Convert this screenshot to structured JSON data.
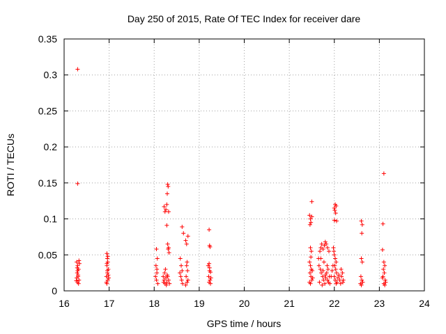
{
  "chart_data": {
    "type": "scatter",
    "title": "Day 250 of 2015, Rate Of TEC Index for receiver dare",
    "xlabel": "GPS time / hours",
    "ylabel": "ROTI / TECUs",
    "xlim": [
      16,
      24
    ],
    "ylim": [
      0,
      0.35
    ],
    "xticks": [
      16,
      17,
      18,
      19,
      20,
      21,
      22,
      23,
      24
    ],
    "yticks": [
      0,
      0.05,
      0.1,
      0.15,
      0.2,
      0.25,
      0.3,
      0.35
    ],
    "ytick_labels": [
      "0",
      "0.05",
      "0.1",
      "0.15",
      "0.2",
      "0.25",
      "0.3",
      "0.35"
    ],
    "grid": true,
    "marker": "+",
    "color": "#ff0000",
    "series": [
      {
        "name": "ROTI",
        "points": [
          [
            16.3,
            0.308
          ],
          [
            16.3,
            0.149
          ],
          [
            16.28,
            0.04
          ],
          [
            16.3,
            0.035
          ],
          [
            16.32,
            0.03
          ],
          [
            16.29,
            0.025
          ],
          [
            16.31,
            0.02
          ],
          [
            16.33,
            0.015
          ],
          [
            16.3,
            0.012
          ],
          [
            16.28,
            0.018
          ],
          [
            16.32,
            0.01
          ],
          [
            16.3,
            0.028
          ],
          [
            16.34,
            0.038
          ],
          [
            16.29,
            0.032
          ],
          [
            16.31,
            0.022
          ],
          [
            16.27,
            0.014
          ],
          [
            16.33,
            0.042
          ],
          [
            16.95,
            0.052
          ],
          [
            16.96,
            0.045
          ],
          [
            16.97,
            0.04
          ],
          [
            16.95,
            0.035
          ],
          [
            16.98,
            0.03
          ],
          [
            16.96,
            0.025
          ],
          [
            16.94,
            0.02
          ],
          [
            16.97,
            0.015
          ],
          [
            16.95,
            0.01
          ],
          [
            16.99,
            0.018
          ],
          [
            16.96,
            0.028
          ],
          [
            16.98,
            0.022
          ],
          [
            16.94,
            0.012
          ],
          [
            16.97,
            0.048
          ],
          [
            16.95,
            0.038
          ],
          [
            18.05,
            0.058
          ],
          [
            18.07,
            0.045
          ],
          [
            18.04,
            0.035
          ],
          [
            18.06,
            0.025
          ],
          [
            18.05,
            0.015
          ],
          [
            18.08,
            0.01
          ],
          [
            18.03,
            0.02
          ],
          [
            18.06,
            0.03
          ],
          [
            18.22,
            0.117
          ],
          [
            18.24,
            0.11
          ],
          [
            18.26,
            0.113
          ],
          [
            18.28,
            0.12
          ],
          [
            18.32,
            0.11
          ],
          [
            18.3,
            0.148
          ],
          [
            18.31,
            0.145
          ],
          [
            18.29,
            0.135
          ],
          [
            18.28,
            0.091
          ],
          [
            18.3,
            0.065
          ],
          [
            18.32,
            0.06
          ],
          [
            18.33,
            0.053
          ],
          [
            18.31,
            0.058
          ],
          [
            18.2,
            0.02
          ],
          [
            18.22,
            0.015
          ],
          [
            18.24,
            0.01
          ],
          [
            18.26,
            0.018
          ],
          [
            18.28,
            0.012
          ],
          [
            18.3,
            0.02
          ],
          [
            18.32,
            0.015
          ],
          [
            18.34,
            0.01
          ],
          [
            18.23,
            0.025
          ],
          [
            18.27,
            0.008
          ],
          [
            18.25,
            0.03
          ],
          [
            18.29,
            0.022
          ],
          [
            18.21,
            0.012
          ],
          [
            18.58,
            0.045
          ],
          [
            18.6,
            0.035
          ],
          [
            18.62,
            0.028
          ],
          [
            18.59,
            0.02
          ],
          [
            18.61,
            0.015
          ],
          [
            18.63,
            0.01
          ],
          [
            18.57,
            0.025
          ],
          [
            18.62,
            0.089
          ],
          [
            18.65,
            0.08
          ],
          [
            18.7,
            0.07
          ],
          [
            18.72,
            0.065
          ],
          [
            18.75,
            0.076
          ],
          [
            18.73,
            0.04
          ],
          [
            18.72,
            0.035
          ],
          [
            18.74,
            0.028
          ],
          [
            18.71,
            0.02
          ],
          [
            18.73,
            0.012
          ],
          [
            18.75,
            0.015
          ],
          [
            18.7,
            0.008
          ],
          [
            19.22,
            0.085
          ],
          [
            19.23,
            0.063
          ],
          [
            19.24,
            0.061
          ],
          [
            19.22,
            0.038
          ],
          [
            19.23,
            0.032
          ],
          [
            19.25,
            0.026
          ],
          [
            19.21,
            0.02
          ],
          [
            19.24,
            0.015
          ],
          [
            19.22,
            0.012
          ],
          [
            19.26,
            0.018
          ],
          [
            19.23,
            0.028
          ],
          [
            19.2,
            0.035
          ],
          [
            19.25,
            0.01
          ],
          [
            21.45,
            0.105
          ],
          [
            21.47,
            0.1
          ],
          [
            21.48,
            0.095
          ],
          [
            21.46,
            0.092
          ],
          [
            21.5,
            0.103
          ],
          [
            21.5,
            0.124
          ],
          [
            21.48,
            0.047
          ],
          [
            21.49,
            0.055
          ],
          [
            21.47,
            0.06
          ],
          [
            21.45,
            0.04
          ],
          [
            21.47,
            0.035
          ],
          [
            21.49,
            0.03
          ],
          [
            21.46,
            0.025
          ],
          [
            21.48,
            0.02
          ],
          [
            21.5,
            0.015
          ],
          [
            21.45,
            0.012
          ],
          [
            21.52,
            0.018
          ],
          [
            21.47,
            0.01
          ],
          [
            21.51,
            0.028
          ],
          [
            21.65,
            0.045
          ],
          [
            21.68,
            0.055
          ],
          [
            21.7,
            0.06
          ],
          [
            21.72,
            0.065
          ],
          [
            21.75,
            0.058
          ],
          [
            21.78,
            0.063
          ],
          [
            21.8,
            0.068
          ],
          [
            21.82,
            0.065
          ],
          [
            21.85,
            0.06
          ],
          [
            21.88,
            0.055
          ],
          [
            21.66,
            0.035
          ],
          [
            21.69,
            0.03
          ],
          [
            21.71,
            0.025
          ],
          [
            21.74,
            0.02
          ],
          [
            21.76,
            0.015
          ],
          [
            21.79,
            0.01
          ],
          [
            21.81,
            0.018
          ],
          [
            21.83,
            0.025
          ],
          [
            21.86,
            0.03
          ],
          [
            21.89,
            0.02
          ],
          [
            21.67,
            0.012
          ],
          [
            21.73,
            0.008
          ],
          [
            21.77,
            0.04
          ],
          [
            21.84,
            0.035
          ],
          [
            21.87,
            0.012
          ],
          [
            21.7,
            0.045
          ],
          [
            21.75,
            0.028
          ],
          [
            21.8,
            0.022
          ],
          [
            21.85,
            0.015
          ],
          [
            21.9,
            0.01
          ],
          [
            21.95,
            0.028
          ],
          [
            21.97,
            0.035
          ],
          [
            21.93,
            0.02
          ],
          [
            21.98,
            0.06
          ],
          [
            21.99,
            0.055
          ],
          [
            22.0,
            0.115
          ],
          [
            22.02,
            0.12
          ],
          [
            22.04,
            0.118
          ],
          [
            22.01,
            0.112
          ],
          [
            22.03,
            0.108
          ],
          [
            22.0,
            0.098
          ],
          [
            22.05,
            0.097
          ],
          [
            22.0,
            0.05
          ],
          [
            22.02,
            0.045
          ],
          [
            22.04,
            0.04
          ],
          [
            22.01,
            0.035
          ],
          [
            22.03,
            0.03
          ],
          [
            22.05,
            0.025
          ],
          [
            22.0,
            0.02
          ],
          [
            22.02,
            0.015
          ],
          [
            22.04,
            0.01
          ],
          [
            22.06,
            0.012
          ],
          [
            22.08,
            0.018
          ],
          [
            22.1,
            0.022
          ],
          [
            22.12,
            0.015
          ],
          [
            22.14,
            0.01
          ],
          [
            22.16,
            0.02
          ],
          [
            22.18,
            0.025
          ],
          [
            22.2,
            0.015
          ],
          [
            22.19,
            0.012
          ],
          [
            22.15,
            0.03
          ],
          [
            22.6,
            0.097
          ],
          [
            22.62,
            0.092
          ],
          [
            22.61,
            0.08
          ],
          [
            22.6,
            0.045
          ],
          [
            22.62,
            0.04
          ],
          [
            22.59,
            0.02
          ],
          [
            22.61,
            0.015
          ],
          [
            22.63,
            0.012
          ],
          [
            22.58,
            0.01
          ],
          [
            22.6,
            0.008
          ],
          [
            23.1,
            0.163
          ],
          [
            23.08,
            0.093
          ],
          [
            23.07,
            0.057
          ],
          [
            23.1,
            0.04
          ],
          [
            23.12,
            0.035
          ],
          [
            23.09,
            0.03
          ],
          [
            23.11,
            0.025
          ],
          [
            23.08,
            0.02
          ],
          [
            23.13,
            0.015
          ],
          [
            23.1,
            0.01
          ],
          [
            23.12,
            0.008
          ],
          [
            23.07,
            0.018
          ],
          [
            23.14,
            0.012
          ]
        ]
      }
    ]
  }
}
